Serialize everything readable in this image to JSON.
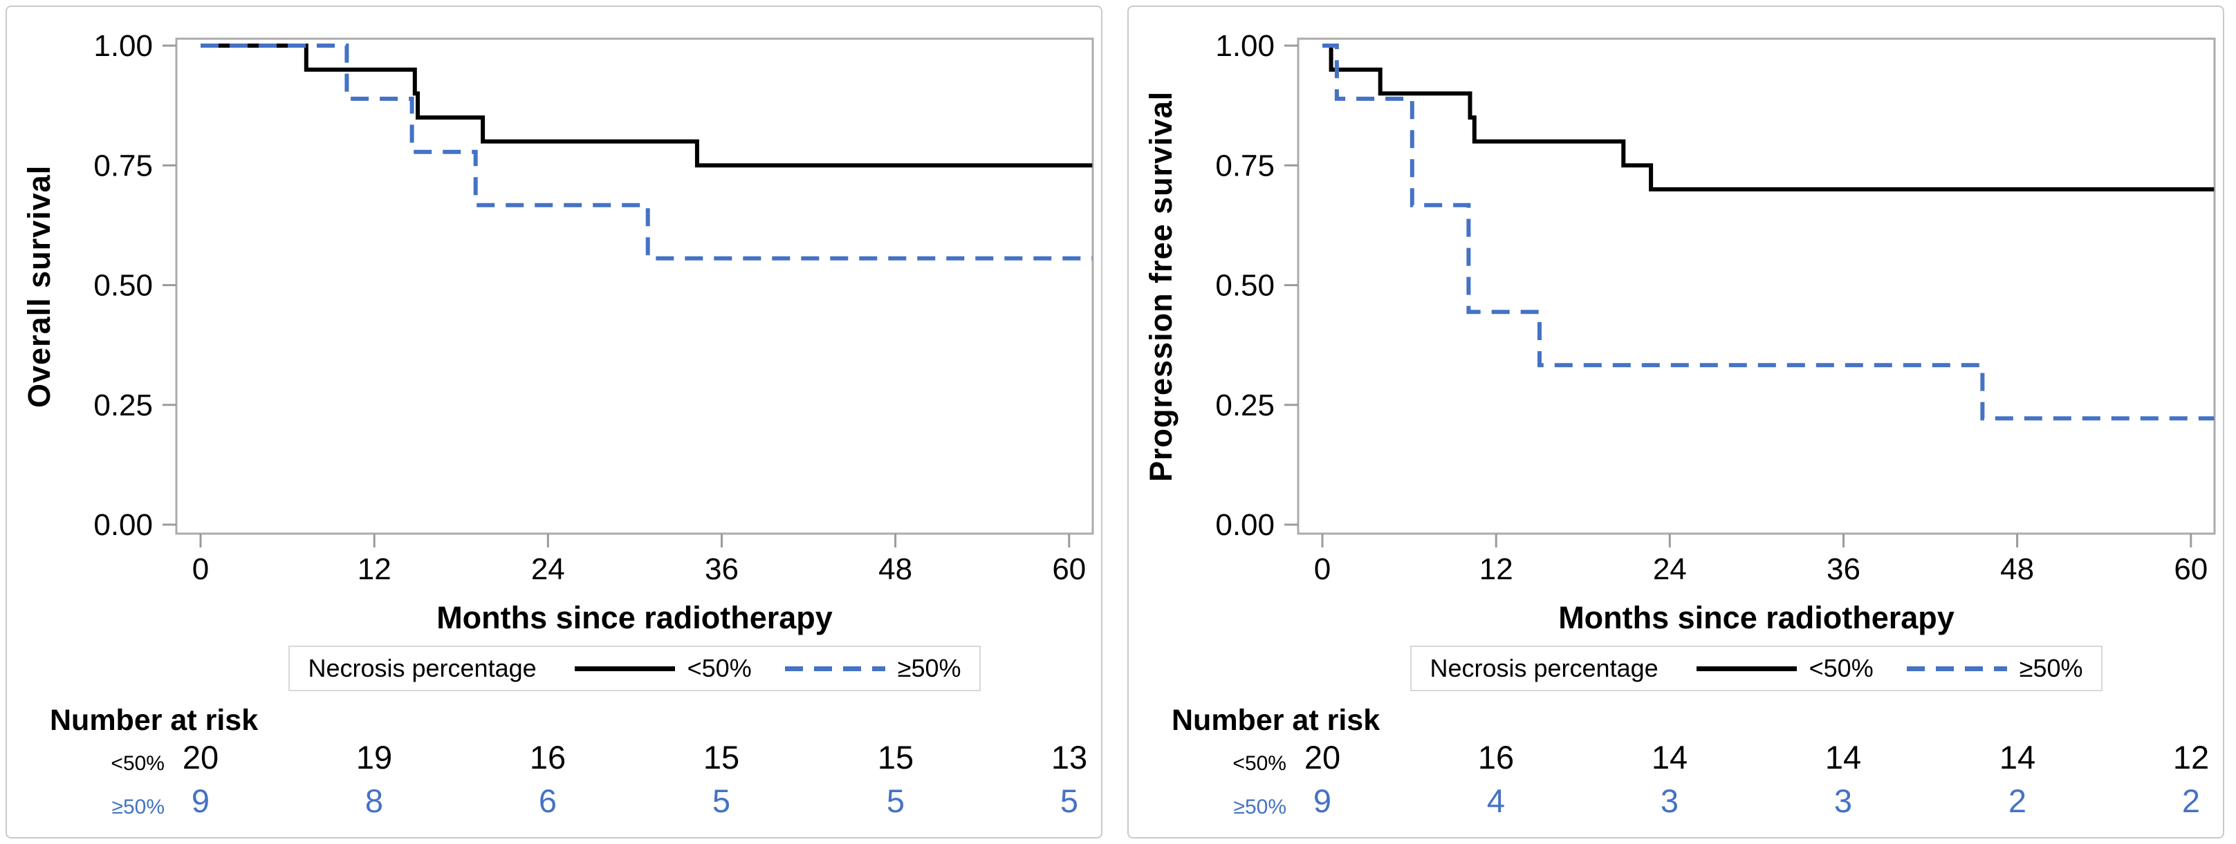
{
  "chart_data": [
    {
      "type": "line",
      "subtype": "kaplan-meier-step",
      "ylabel": "Overall survival",
      "xlabel": "Months since radiotherapy",
      "ylim": [
        0.0,
        1.0
      ],
      "xlim": [
        0,
        62
      ],
      "grid": "off",
      "y_ticks": {
        "values": [
          1.0,
          0.75,
          0.5,
          0.25,
          0.0
        ],
        "labels": [
          "1.00",
          "0.75",
          "0.50",
          "0.25",
          "0.00"
        ]
      },
      "x_ticks": {
        "values": [
          0,
          12,
          24,
          36,
          48,
          60
        ],
        "labels": [
          "0",
          "12",
          "24",
          "36",
          "48",
          "60"
        ]
      },
      "legend": {
        "title": "Necrosis percentage",
        "position": "below-axis-centered",
        "entries": [
          {
            "label": "<50%",
            "style": "solid",
            "color": "#000000"
          },
          {
            "label": "≥50%",
            "style": "dashed",
            "color": "#4472C4"
          }
        ]
      },
      "series": [
        {
          "name": "<50%",
          "style": "solid",
          "color": "#000000",
          "start_value": 1.0,
          "end_month": 61.6,
          "drops": [
            [
              7.3,
              0.95
            ],
            [
              14.8,
              0.9
            ],
            [
              15.0,
              0.85
            ],
            [
              19.5,
              0.8
            ],
            [
              34.3,
              0.75
            ]
          ]
        },
        {
          "name": "≥50%",
          "style": "dashed",
          "color": "#4472C4",
          "start_value": 1.0,
          "end_month": 61.6,
          "drops": [
            [
              10.1,
              0.889
            ],
            [
              14.6,
              0.778
            ],
            [
              19.0,
              0.667
            ],
            [
              30.9,
              0.556
            ]
          ]
        }
      ],
      "risk_table": {
        "title": "Number at risk",
        "time_points": [
          0,
          12,
          24,
          36,
          48,
          60
        ],
        "rows": [
          {
            "label": "<50%",
            "color": "#000000",
            "values": [
              20,
              19,
              16,
              15,
              15,
              13
            ]
          },
          {
            "label": "≥50%",
            "color": "#4472C4",
            "values": [
              9,
              8,
              6,
              5,
              5,
              5
            ]
          }
        ]
      }
    },
    {
      "type": "line",
      "subtype": "kaplan-meier-step",
      "ylabel": "Progression free survival",
      "xlabel": "Months since radiotherapy",
      "ylim": [
        0.0,
        1.0
      ],
      "xlim": [
        0,
        62
      ],
      "grid": "off",
      "y_ticks": {
        "values": [
          1.0,
          0.75,
          0.5,
          0.25,
          0.0
        ],
        "labels": [
          "1.00",
          "0.75",
          "0.50",
          "0.25",
          "0.00"
        ]
      },
      "x_ticks": {
        "values": [
          0,
          12,
          24,
          36,
          48,
          60
        ],
        "labels": [
          "0",
          "12",
          "24",
          "36",
          "48",
          "60"
        ]
      },
      "legend": {
        "title": "Necrosis percentage",
        "position": "below-axis-centered",
        "entries": [
          {
            "label": "<50%",
            "style": "solid",
            "color": "#000000"
          },
          {
            "label": "≥50%",
            "style": "dashed",
            "color": "#4472C4"
          }
        ]
      },
      "series": [
        {
          "name": "<50%",
          "style": "solid",
          "color": "#000000",
          "start_value": 1.0,
          "end_month": 61.6,
          "drops": [
            [
              0.6,
              0.95
            ],
            [
              4.0,
              0.9
            ],
            [
              10.2,
              0.85
            ],
            [
              10.5,
              0.8
            ],
            [
              20.8,
              0.75
            ],
            [
              22.7,
              0.7
            ]
          ]
        },
        {
          "name": "≥50%",
          "style": "dashed",
          "color": "#4472C4",
          "start_value": 1.0,
          "end_month": 61.6,
          "drops": [
            [
              1.0,
              0.889
            ],
            [
              6.2,
              0.667
            ],
            [
              10.1,
              0.444
            ],
            [
              15.0,
              0.333
            ],
            [
              45.6,
              0.222
            ]
          ]
        }
      ],
      "risk_table": {
        "title": "Number at risk",
        "time_points": [
          0,
          12,
          24,
          36,
          48,
          60
        ],
        "rows": [
          {
            "label": "<50%",
            "color": "#000000",
            "values": [
              20,
              16,
              14,
              14,
              14,
              12
            ]
          },
          {
            "label": "≥50%",
            "color": "#4472C4",
            "values": [
              9,
              4,
              3,
              3,
              2,
              2
            ]
          }
        ]
      }
    }
  ]
}
